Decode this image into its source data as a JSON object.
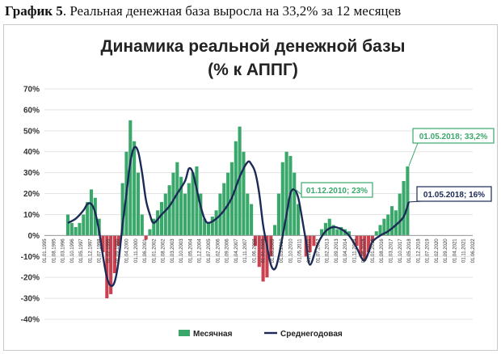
{
  "caption": {
    "label": "График 5",
    "text": ". Реальная денежная база выросла на 33,2% за 12 месяцев"
  },
  "chart_data": {
    "type": "bar",
    "title_line1": "Динамика реальной денежной базы",
    "title_line2": "(% к АППГ)",
    "ylim": [
      -40,
      70
    ],
    "yticks": [
      "70%",
      "60%",
      "50%",
      "40%",
      "30%",
      "20%",
      "10%",
      "0%",
      "-10%",
      "-20%",
      "-30%",
      "-40%"
    ],
    "grid": true,
    "legend_position": "bottom-center",
    "colors": {
      "positive": "#3aa86b",
      "negative": "#c9414f",
      "line": "#1b2a56",
      "callout_green": "#3aa86b",
      "callout_navy": "#1b2a56"
    },
    "x_labels": [
      "01.01.1995",
      "01.08.1995",
      "01.03.1996",
      "01.10.1996",
      "01.05.1997",
      "01.12.1997",
      "01.07.1998",
      "01.02.1999",
      "01.09.1999",
      "01.04.2000",
      "01.11.2000",
      "01.06.2001",
      "01.01.2002",
      "01.08.2002",
      "01.03.2003",
      "01.10.2003",
      "01.05.2004",
      "01.12.2004",
      "01.07.2005",
      "01.02.2006",
      "01.09.2006",
      "01.04.2007",
      "01.11.2007",
      "01.06.2008",
      "01.01.2009",
      "01.08.2009",
      "01.03.2010",
      "01.10.2010",
      "01.05.2011",
      "01.12.2011",
      "01.07.2012",
      "01.02.2013",
      "01.09.2013",
      "01.04.2014",
      "01.11.2014",
      "01.06.2015",
      "01.01.2016",
      "01.08.2016",
      "01.03.2017",
      "01.10.2017",
      "01.05.2018",
      "01.12.2018",
      "01.07.2019",
      "01.02.2020",
      "01.09.2020",
      "01.04.2021",
      "01.11.2021",
      "01.06.2022"
    ],
    "series": [
      {
        "name": "Месячная",
        "kind": "bar",
        "x": [
          1995.0,
          1995.25,
          1995.5,
          1995.75,
          1996.0,
          1996.25,
          1996.5,
          1996.75,
          1997.0,
          1997.25,
          1997.5,
          1997.75,
          1998.0,
          1998.25,
          1998.5,
          1998.75,
          1999.0,
          1999.25,
          1999.5,
          1999.75,
          2000.0,
          2000.25,
          2000.5,
          2000.75,
          2001.0,
          2001.25,
          2001.5,
          2001.75,
          2002.0,
          2002.25,
          2002.5,
          2002.75,
          2003.0,
          2003.25,
          2003.5,
          2003.75,
          2004.0,
          2004.25,
          2004.5,
          2004.75,
          2005.0,
          2005.25,
          2005.5,
          2005.75,
          2006.0,
          2006.25,
          2006.5,
          2006.75,
          2007.0,
          2007.25,
          2007.5,
          2007.75,
          2008.0,
          2008.25,
          2008.5,
          2008.75,
          2009.0,
          2009.25,
          2009.5,
          2009.75,
          2010.0,
          2010.25,
          2010.5,
          2010.75,
          2011.0,
          2011.25,
          2011.5,
          2011.75,
          2012.0,
          2012.25,
          2012.5,
          2012.75,
          2013.0,
          2013.25,
          2013.5,
          2013.75,
          2014.0,
          2014.25,
          2014.5,
          2014.75,
          2015.0,
          2015.25,
          2015.5,
          2015.75,
          2016.0,
          2016.25,
          2016.5,
          2016.75,
          2017.0,
          2017.25,
          2017.5,
          2017.75,
          2018.0,
          2018.25
        ],
        "values": [
          0,
          0,
          0,
          0,
          0,
          0,
          10,
          6,
          4,
          6,
          10,
          16,
          22,
          18,
          8,
          -8,
          -30,
          -28,
          -18,
          -5,
          25,
          40,
          55,
          45,
          30,
          10,
          -2,
          3,
          8,
          12,
          16,
          20,
          24,
          30,
          35,
          28,
          20,
          25,
          30,
          33,
          20,
          8,
          6,
          9,
          12,
          20,
          25,
          30,
          35,
          45,
          52,
          40,
          20,
          15,
          -5,
          -15,
          -22,
          -20,
          -10,
          5,
          20,
          35,
          40,
          38,
          30,
          15,
          0,
          -10,
          -8,
          -5,
          0,
          3,
          6,
          8,
          5,
          3,
          4,
          3,
          2,
          0,
          -5,
          -10,
          -12,
          -8,
          -3,
          2,
          5,
          8,
          10,
          14,
          12,
          20,
          26,
          33
        ]
      },
      {
        "name": "Среднегодовая",
        "kind": "line",
        "x": [
          1996.5,
          1997.0,
          1997.5,
          1997.75,
          1998.0,
          1998.25,
          1998.5,
          1998.75,
          1999.0,
          1999.25,
          1999.5,
          1999.75,
          2000.0,
          2000.25,
          2000.5,
          2000.75,
          2001.0,
          2001.25,
          2001.5,
          2001.75,
          2002.0,
          2002.5,
          2003.0,
          2003.5,
          2004.0,
          2004.25,
          2004.5,
          2004.75,
          2005.0,
          2005.25,
          2005.5,
          2006.0,
          2006.5,
          2007.0,
          2007.5,
          2008.0,
          2008.25,
          2008.5,
          2008.75,
          2009.0,
          2009.25,
          2009.5,
          2009.75,
          2010.0,
          2010.5,
          2010.75,
          2011.0,
          2011.25,
          2011.5,
          2011.75,
          2012.0,
          2012.5,
          2013.0,
          2013.5,
          2014.0,
          2014.5,
          2015.0,
          2015.25,
          2015.5,
          2015.75,
          2016.0,
          2016.5,
          2017.0,
          2017.5,
          2018.0,
          2018.33
        ],
        "values": [
          6,
          8,
          12,
          15,
          15,
          11,
          2,
          -10,
          -20,
          -24,
          -22,
          -12,
          5,
          20,
          35,
          42,
          40,
          30,
          17,
          10,
          6,
          10,
          14,
          20,
          26,
          32,
          30,
          22,
          14,
          8,
          6,
          8,
          12,
          18,
          28,
          35,
          34,
          30,
          20,
          5,
          -5,
          -14,
          -16,
          -10,
          10,
          20,
          22,
          18,
          8,
          -3,
          -14,
          -4,
          2,
          4,
          3,
          0,
          -6,
          -10,
          -12,
          -8,
          -3,
          0,
          2,
          5,
          9,
          16
        ]
      }
    ],
    "annotations": [
      {
        "text": "01.12.2010; 23%",
        "x": 2010.92,
        "y": 23,
        "style": "green"
      },
      {
        "text": "01.05.2018; 33,2%",
        "x": 2018.33,
        "y": 33.2,
        "style": "green"
      },
      {
        "text": "01.05.2018; 16%",
        "x": 2018.33,
        "y": 16,
        "style": "navy"
      }
    ],
    "x_range": [
      1995.0,
      2022.42
    ]
  }
}
